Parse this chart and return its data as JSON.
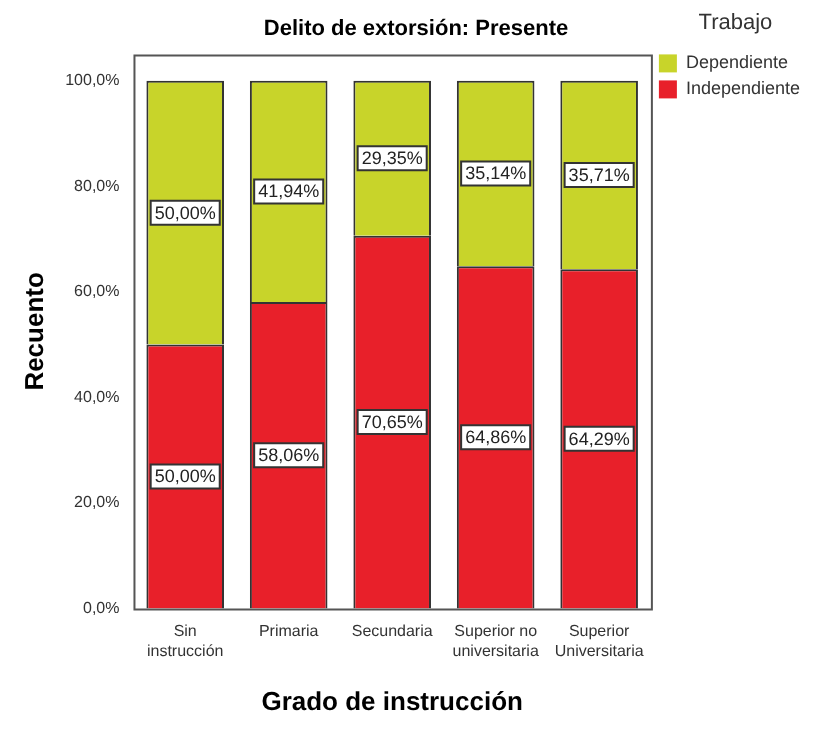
{
  "chart_data": {
    "type": "bar",
    "stacked": true,
    "title": "Delito de extorsión: Presente",
    "xlabel": "Grado de instrucción",
    "ylabel": "Recuento",
    "legend_title": "Trabajo",
    "legend": "top right",
    "categories": [
      "Sin instrucción",
      "Primaria",
      "Secundaria",
      "Superior no universitaria",
      "Superior Universitaria"
    ],
    "series": [
      {
        "name": "Independiente",
        "color": "#e8202a",
        "values": [
          50.0,
          58.06,
          70.65,
          64.86,
          64.29
        ],
        "value_labels": [
          "50,00%",
          "58,06%",
          "70,65%",
          "64,86%",
          "64,29%"
        ]
      },
      {
        "name": "Dependiente",
        "color": "#c8d42a",
        "values": [
          50.0,
          41.94,
          29.35,
          35.14,
          35.71
        ],
        "value_labels": [
          "50,00%",
          "41,94%",
          "29,35%",
          "35,14%",
          "35,71%"
        ]
      }
    ],
    "ylim": [
      0,
      105
    ],
    "yticks": [
      {
        "value": 0,
        "label": "0,0%"
      },
      {
        "value": 20,
        "label": "20,0%"
      },
      {
        "value": 40,
        "label": "40,0%"
      },
      {
        "value": 60,
        "label": "60,0%"
      },
      {
        "value": 80,
        "label": "80,0%"
      },
      {
        "value": 100,
        "label": "100,0%"
      }
    ],
    "grid": false
  }
}
